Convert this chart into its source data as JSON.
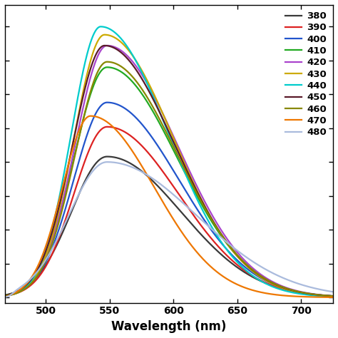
{
  "series": [
    {
      "label": "380",
      "color": "#3a3a3a",
      "peak": 548,
      "amplitude": 0.52,
      "sigma_l": 28,
      "sigma_r": 58,
      "cutoff": 462
    },
    {
      "label": "390",
      "color": "#dd2222",
      "peak": 548,
      "amplitude": 0.63,
      "sigma_l": 26,
      "sigma_r": 56,
      "cutoff": 458
    },
    {
      "label": "400",
      "color": "#2255cc",
      "peak": 548,
      "amplitude": 0.72,
      "sigma_l": 26,
      "sigma_r": 56,
      "cutoff": 455
    },
    {
      "label": "410",
      "color": "#22aa22",
      "peak": 548,
      "amplitude": 0.85,
      "sigma_l": 26,
      "sigma_r": 55,
      "cutoff": 450
    },
    {
      "label": "420",
      "color": "#aa44cc",
      "peak": 548,
      "amplitude": 0.93,
      "sigma_l": 25,
      "sigma_r": 55,
      "cutoff": 447
    },
    {
      "label": "430",
      "color": "#ccaa00",
      "peak": 546,
      "amplitude": 0.97,
      "sigma_l": 24,
      "sigma_r": 54,
      "cutoff": 443
    },
    {
      "label": "440",
      "color": "#00cccc",
      "peak": 543,
      "amplitude": 1.0,
      "sigma_l": 23,
      "sigma_r": 53,
      "cutoff": 441
    },
    {
      "label": "450",
      "color": "#5a1a2a",
      "peak": 546,
      "amplitude": 0.93,
      "sigma_l": 25,
      "sigma_r": 55,
      "cutoff": 452
    },
    {
      "label": "460",
      "color": "#888800",
      "peak": 548,
      "amplitude": 0.87,
      "sigma_l": 25,
      "sigma_r": 55,
      "cutoff": 460
    },
    {
      "label": "470",
      "color": "#ee7700",
      "peak": 535,
      "amplitude": 0.67,
      "sigma_l": 22,
      "sigma_r": 50,
      "cutoff": 470
    },
    {
      "label": "480",
      "color": "#aabbdd",
      "peak": 548,
      "amplitude": 0.5,
      "sigma_l": 30,
      "sigma_r": 70,
      "cutoff": 473
    }
  ],
  "xlabel": "Wavelength (nm)",
  "xmin": 468,
  "xmax": 725,
  "ymin": -0.02,
  "ymax": 1.08,
  "xticks": [
    500,
    550,
    600,
    650,
    700
  ],
  "yticks_count": 8,
  "legend_fontsize": 9.5,
  "xlabel_fontsize": 12,
  "linewidth": 1.6
}
